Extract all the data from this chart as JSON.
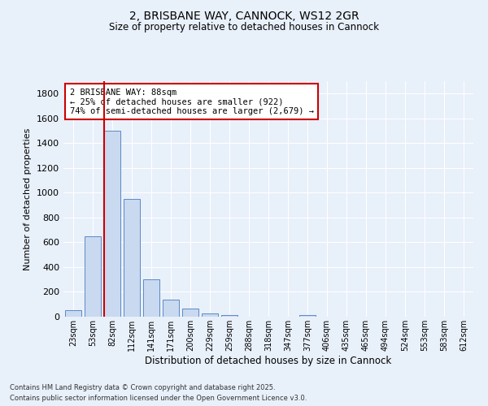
{
  "title_line1": "2, BRISBANE WAY, CANNOCK, WS12 2GR",
  "title_line2": "Size of property relative to detached houses in Cannock",
  "xlabel": "Distribution of detached houses by size in Cannock",
  "ylabel": "Number of detached properties",
  "bin_labels": [
    "23sqm",
    "53sqm",
    "82sqm",
    "112sqm",
    "141sqm",
    "171sqm",
    "200sqm",
    "229sqm",
    "259sqm",
    "288sqm",
    "318sqm",
    "347sqm",
    "377sqm",
    "406sqm",
    "435sqm",
    "465sqm",
    "494sqm",
    "524sqm",
    "553sqm",
    "583sqm",
    "612sqm"
  ],
  "bin_values": [
    50,
    650,
    1500,
    950,
    300,
    140,
    65,
    25,
    15,
    0,
    0,
    0,
    15,
    0,
    0,
    0,
    0,
    0,
    0,
    0,
    0
  ],
  "bar_color": "#c9d9f0",
  "bar_edge_color": "#5a8ac6",
  "bg_color": "#e8f0fa",
  "vline_color": "#cc0000",
  "annotation_text": "2 BRISBANE WAY: 88sqm\n← 25% of detached houses are smaller (922)\n74% of semi-detached houses are larger (2,679) →",
  "annotation_box_color": "#ffffff",
  "annotation_box_edge": "#cc0000",
  "ylim": [
    0,
    1900
  ],
  "yticks": [
    0,
    200,
    400,
    600,
    800,
    1000,
    1200,
    1400,
    1600,
    1800
  ],
  "footer_line1": "Contains HM Land Registry data © Crown copyright and database right 2025.",
  "footer_line2": "Contains public sector information licensed under the Open Government Licence v3.0."
}
